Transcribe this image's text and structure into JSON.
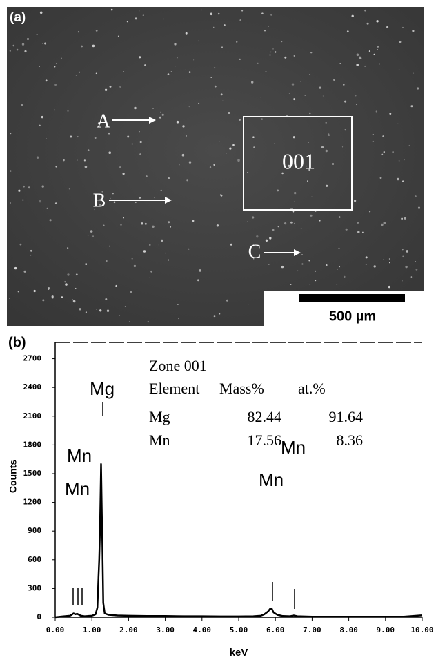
{
  "panel_a": {
    "label": "(a)",
    "markers": [
      "A",
      "B",
      "C"
    ],
    "zone": "001",
    "scale_bar": "500 µm"
  },
  "chart_data": {
    "type": "line",
    "label": "(b)",
    "xlabel": "keV",
    "ylabel": "Counts",
    "color": "#000000",
    "x": [
      0,
      0.2,
      0.4,
      0.45,
      0.5,
      0.55,
      0.6,
      0.7,
      0.8,
      1.0,
      1.1,
      1.15,
      1.18,
      1.2,
      1.22,
      1.25,
      1.27,
      1.29,
      1.31,
      1.35,
      1.45,
      1.7,
      2.0,
      2.5,
      3.0,
      3.5,
      4.0,
      4.5,
      5.0,
      5.4,
      5.6,
      5.7,
      5.8,
      5.85,
      5.9,
      5.95,
      6.05,
      6.2,
      6.4,
      6.5,
      6.6,
      7.0,
      7.5,
      8.0,
      8.5,
      9.0,
      9.5,
      10.0
    ],
    "values": [
      0,
      8,
      15,
      25,
      40,
      30,
      35,
      15,
      10,
      15,
      30,
      100,
      420,
      600,
      900,
      1600,
      1100,
      680,
      150,
      40,
      25,
      18,
      15,
      12,
      12,
      10,
      10,
      8,
      8,
      10,
      15,
      30,
      60,
      85,
      90,
      50,
      25,
      12,
      10,
      18,
      10,
      6,
      6,
      5,
      5,
      5,
      5,
      20
    ],
    "xlim": [
      0,
      10
    ],
    "ylim": [
      0,
      2870
    ],
    "xticks": [
      {
        "value": 0,
        "label": "0.00"
      },
      {
        "value": 1,
        "label": "1.00"
      },
      {
        "value": 2,
        "label": "2.00"
      },
      {
        "value": 3,
        "label": "3.00"
      },
      {
        "value": 4,
        "label": "4.00"
      },
      {
        "value": 5,
        "label": "5.00"
      },
      {
        "value": 6,
        "label": "6.00"
      },
      {
        "value": 7,
        "label": "7.00"
      },
      {
        "value": 8,
        "label": "8.00"
      },
      {
        "value": 9,
        "label": "9.00"
      },
      {
        "value": 10,
        "label": "10.00"
      }
    ],
    "yticks": [
      0,
      300,
      600,
      900,
      1200,
      1500,
      1800,
      2100,
      2400,
      2700
    ],
    "peak_labels": [
      "Mg",
      "Mn",
      "Mn",
      "Mn",
      "Mn"
    ],
    "table": {
      "title": "Zone 001",
      "header": [
        "Element",
        "Mass%",
        "at.%"
      ],
      "rows": [
        [
          "Mg",
          82.44,
          91.64
        ],
        [
          "Mn",
          17.56,
          8.36
        ]
      ]
    }
  }
}
